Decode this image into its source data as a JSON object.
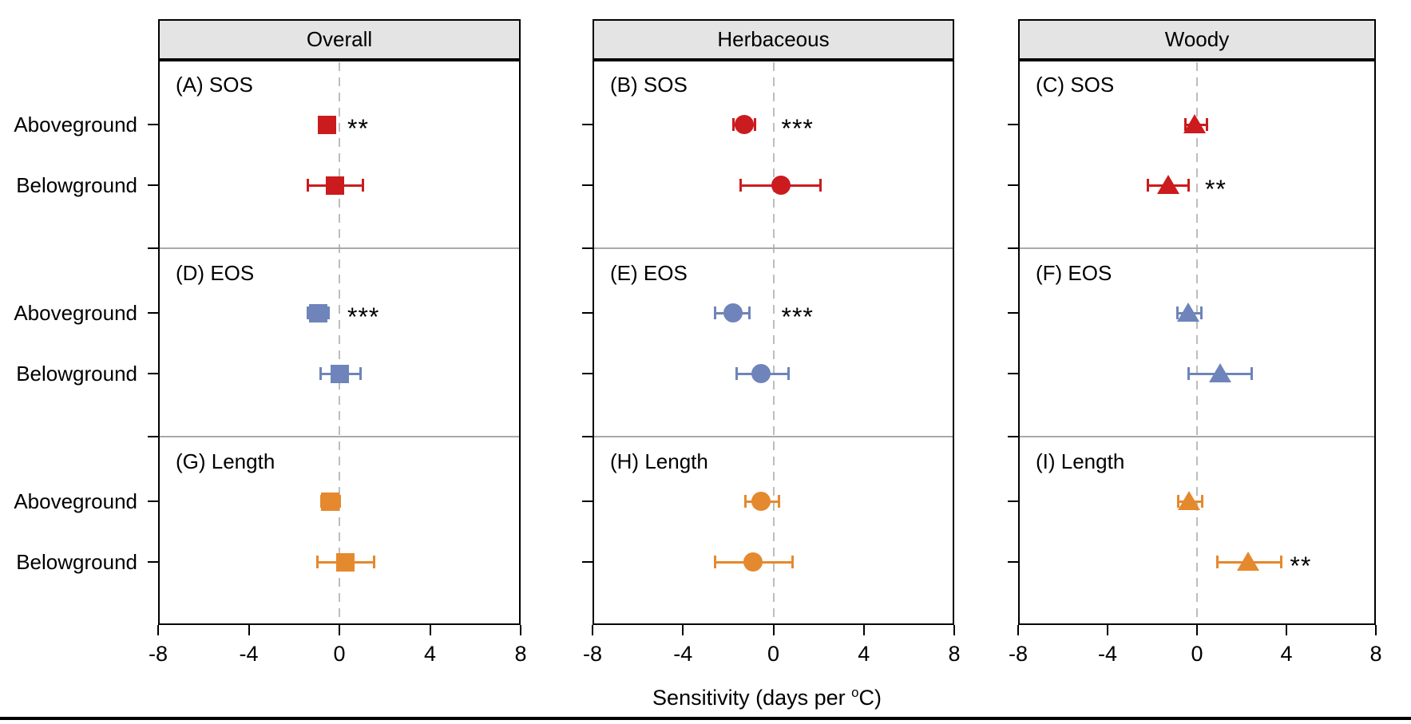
{
  "chart_data": {
    "type": "scatter",
    "subtype": "dot-and-whisker forest plot, 3x3 panel grid",
    "xlabel": "Sensitivity (days per °C)",
    "xlabel_parts": {
      "prefix": "Sensitivity (days per ",
      "sup": "o",
      "suffix": "C)"
    },
    "x_axis": {
      "min": -8,
      "max": 8,
      "ticks": [
        -8,
        -4,
        0,
        4,
        8
      ],
      "zero_reference_line": "dashed gray"
    },
    "columns": [
      "Overall",
      "Herbaceous",
      "Woody"
    ],
    "rows": [
      "SOS",
      "EOS",
      "Length"
    ],
    "groups": [
      "Aboveground",
      "Belowground"
    ],
    "marker_by_column": {
      "Overall": "square",
      "Herbaceous": "circle",
      "Woody": "triangle"
    },
    "colors": {
      "sos_red": "#CB1B1E",
      "eos_blue": "#6E84BA",
      "length_orange": "#E5892E"
    },
    "panels": [
      {
        "id": "A",
        "label": "(A) SOS",
        "column": "Overall",
        "row": "SOS",
        "marker": "square",
        "color": "#CB1B1E",
        "points": [
          {
            "group": "Aboveground",
            "mean": -0.55,
            "ci_lo": -0.85,
            "ci_hi": -0.25,
            "sig": "**"
          },
          {
            "group": "Belowground",
            "mean": -0.2,
            "ci_lo": -1.4,
            "ci_hi": 1.05,
            "sig": ""
          }
        ]
      },
      {
        "id": "B",
        "label": "(B) SOS",
        "column": "Herbaceous",
        "row": "SOS",
        "marker": "circle",
        "color": "#CB1B1E",
        "points": [
          {
            "group": "Aboveground",
            "mean": -1.3,
            "ci_lo": -1.8,
            "ci_hi": -0.8,
            "sig": "***"
          },
          {
            "group": "Belowground",
            "mean": 0.35,
            "ci_lo": -1.45,
            "ci_hi": 2.1,
            "sig": ""
          }
        ]
      },
      {
        "id": "C",
        "label": "(C) SOS",
        "column": "Woody",
        "row": "SOS",
        "marker": "triangle",
        "color": "#CB1B1E",
        "points": [
          {
            "group": "Aboveground",
            "mean": -0.1,
            "ci_lo": -0.55,
            "ci_hi": 0.45,
            "sig": ""
          },
          {
            "group": "Belowground",
            "mean": -1.3,
            "ci_lo": -2.2,
            "ci_hi": -0.35,
            "sig": "**"
          }
        ]
      },
      {
        "id": "D",
        "label": "(D) EOS",
        "column": "Overall",
        "row": "EOS",
        "marker": "square",
        "color": "#6E84BA",
        "points": [
          {
            "group": "Aboveground",
            "mean": -0.95,
            "ci_lo": -1.4,
            "ci_hi": -0.45,
            "sig": "***"
          },
          {
            "group": "Belowground",
            "mean": 0.0,
            "ci_lo": -0.85,
            "ci_hi": 0.95,
            "sig": ""
          }
        ]
      },
      {
        "id": "E",
        "label": "(E) EOS",
        "column": "Herbaceous",
        "row": "EOS",
        "marker": "circle",
        "color": "#6E84BA",
        "points": [
          {
            "group": "Aboveground",
            "mean": -1.8,
            "ci_lo": -2.6,
            "ci_hi": -1.05,
            "sig": "***"
          },
          {
            "group": "Belowground",
            "mean": -0.55,
            "ci_lo": -1.65,
            "ci_hi": 0.7,
            "sig": ""
          }
        ]
      },
      {
        "id": "F",
        "label": "(F) EOS",
        "column": "Woody",
        "row": "EOS",
        "marker": "triangle",
        "color": "#6E84BA",
        "points": [
          {
            "group": "Aboveground",
            "mean": -0.4,
            "ci_lo": -0.9,
            "ci_hi": 0.2,
            "sig": ""
          },
          {
            "group": "Belowground",
            "mean": 1.05,
            "ci_lo": -0.4,
            "ci_hi": 2.45,
            "sig": ""
          }
        ]
      },
      {
        "id": "G",
        "label": "(G) Length",
        "column": "Overall",
        "row": "Length",
        "marker": "square",
        "color": "#E5892E",
        "points": [
          {
            "group": "Aboveground",
            "mean": -0.4,
            "ci_lo": -0.8,
            "ci_hi": 0.05,
            "sig": ""
          },
          {
            "group": "Belowground",
            "mean": 0.25,
            "ci_lo": -1.0,
            "ci_hi": 1.55,
            "sig": ""
          }
        ]
      },
      {
        "id": "H",
        "label": "(H) Length",
        "column": "Herbaceous",
        "row": "Length",
        "marker": "circle",
        "color": "#E5892E",
        "points": [
          {
            "group": "Aboveground",
            "mean": -0.55,
            "ci_lo": -1.25,
            "ci_hi": 0.25,
            "sig": ""
          },
          {
            "group": "Belowground",
            "mean": -0.9,
            "ci_lo": -2.6,
            "ci_hi": 0.85,
            "sig": ""
          }
        ]
      },
      {
        "id": "I",
        "label": "(I) Length",
        "column": "Woody",
        "row": "Length",
        "marker": "triangle",
        "color": "#E5892E",
        "points": [
          {
            "group": "Aboveground",
            "mean": -0.35,
            "ci_lo": -0.85,
            "ci_hi": 0.25,
            "sig": ""
          },
          {
            "group": "Belowground",
            "mean": 2.3,
            "ci_lo": 0.9,
            "ci_hi": 3.8,
            "sig": "**"
          }
        ]
      }
    ]
  }
}
